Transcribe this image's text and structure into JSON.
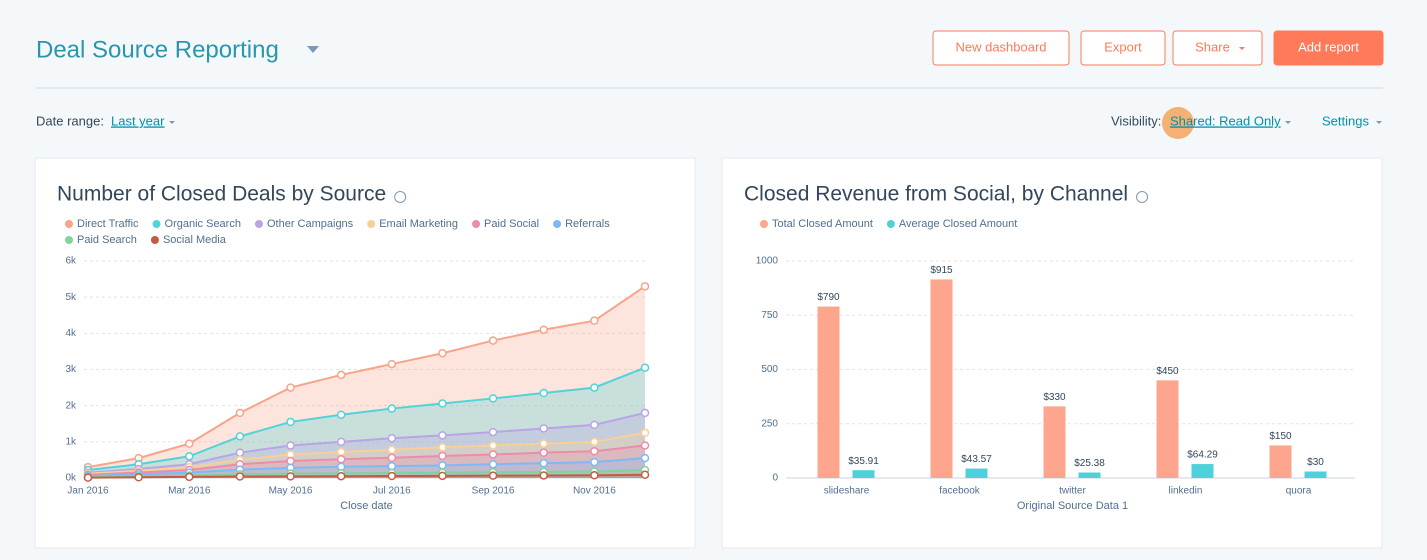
{
  "header": {
    "title": "Deal Source Reporting",
    "buttons": [
      "New dashboard",
      "Export",
      "Share",
      "Add report"
    ]
  },
  "filters": {
    "date_range_label": "Date range:",
    "date_range_value": "Last year",
    "visibility_label": "Visibility:",
    "visibility_value": "Shared: Read Only",
    "settings": "Settings"
  },
  "chart_data": [
    {
      "type": "area",
      "title": "Number of Closed Deals by Source",
      "x_label": "Close date",
      "categories": [
        "Jan 2016",
        null,
        "Mar 2016",
        null,
        "May 2016",
        null,
        "Jul 2016",
        null,
        "Sep 2016",
        null,
        "Nov 2016",
        null
      ],
      "series": [
        {
          "name": "Direct Traffic",
          "color": "#f8a48a",
          "values": [
            300,
            550,
            950,
            1800,
            2500,
            2850,
            3150,
            3450,
            3800,
            4100,
            4350,
            5300
          ]
        },
        {
          "name": "Organic Search",
          "color": "#51d3d9",
          "values": [
            220,
            380,
            600,
            1150,
            1550,
            1750,
            1920,
            2060,
            2200,
            2350,
            2500,
            3050
          ]
        },
        {
          "name": "Other Campaigns",
          "color": "#b9a4e6",
          "values": [
            150,
            250,
            380,
            700,
            900,
            1000,
            1100,
            1180,
            1270,
            1370,
            1470,
            1800
          ]
        },
        {
          "name": "Email Marketing",
          "color": "#f9cf96",
          "values": [
            120,
            200,
            300,
            500,
            650,
            720,
            780,
            850,
            900,
            950,
            1000,
            1250
          ]
        },
        {
          "name": "Paid Social",
          "color": "#ee8bab",
          "values": [
            90,
            150,
            220,
            380,
            470,
            520,
            560,
            610,
            650,
            700,
            740,
            900
          ]
        },
        {
          "name": "Referrals",
          "color": "#7fb8f5",
          "values": [
            60,
            100,
            150,
            230,
            280,
            310,
            330,
            350,
            380,
            410,
            440,
            550
          ]
        },
        {
          "name": "Paid Search",
          "color": "#7fd39b",
          "values": [
            30,
            50,
            70,
            100,
            120,
            130,
            140,
            150,
            160,
            170,
            180,
            220
          ]
        },
        {
          "name": "Social Media",
          "color": "#c45c43",
          "values": [
            10,
            20,
            30,
            40,
            45,
            50,
            55,
            60,
            65,
            70,
            75,
            90
          ]
        }
      ],
      "ylim": [
        0,
        6000
      ],
      "yticks": [
        {
          "value": 0,
          "label": "0k"
        },
        {
          "value": 1000,
          "label": "1k"
        },
        {
          "value": 2000,
          "label": "2k"
        },
        {
          "value": 3000,
          "label": "3k"
        },
        {
          "value": 4000,
          "label": "4k"
        },
        {
          "value": 5000,
          "label": "5k"
        },
        {
          "value": 6000,
          "label": "6k"
        }
      ],
      "grid": true
    },
    {
      "type": "bar",
      "title": "Closed Revenue from Social, by Channel",
      "x_label": "Original Source Data 1",
      "categories": [
        "slideshare",
        "facebook",
        "twitter",
        "linkedin",
        "quora"
      ],
      "series": [
        {
          "name": "Total Closed Amount",
          "color": "#fea58e",
          "values": [
            790,
            915,
            330,
            450,
            150
          ],
          "value_labels": [
            "$790",
            "$915",
            "$330",
            "$450",
            "$150"
          ]
        },
        {
          "name": "Average Closed Amount",
          "color": "#4fd1d9",
          "values": [
            35.91,
            43.57,
            25.38,
            64.29,
            30
          ],
          "value_labels": [
            "$35.91",
            "$43.57",
            "$25.38",
            "$64.29",
            "$30"
          ]
        }
      ],
      "ylim": [
        0,
        1000
      ],
      "yticks": [
        0,
        250,
        500,
        750,
        1000
      ],
      "grid": true
    }
  ]
}
